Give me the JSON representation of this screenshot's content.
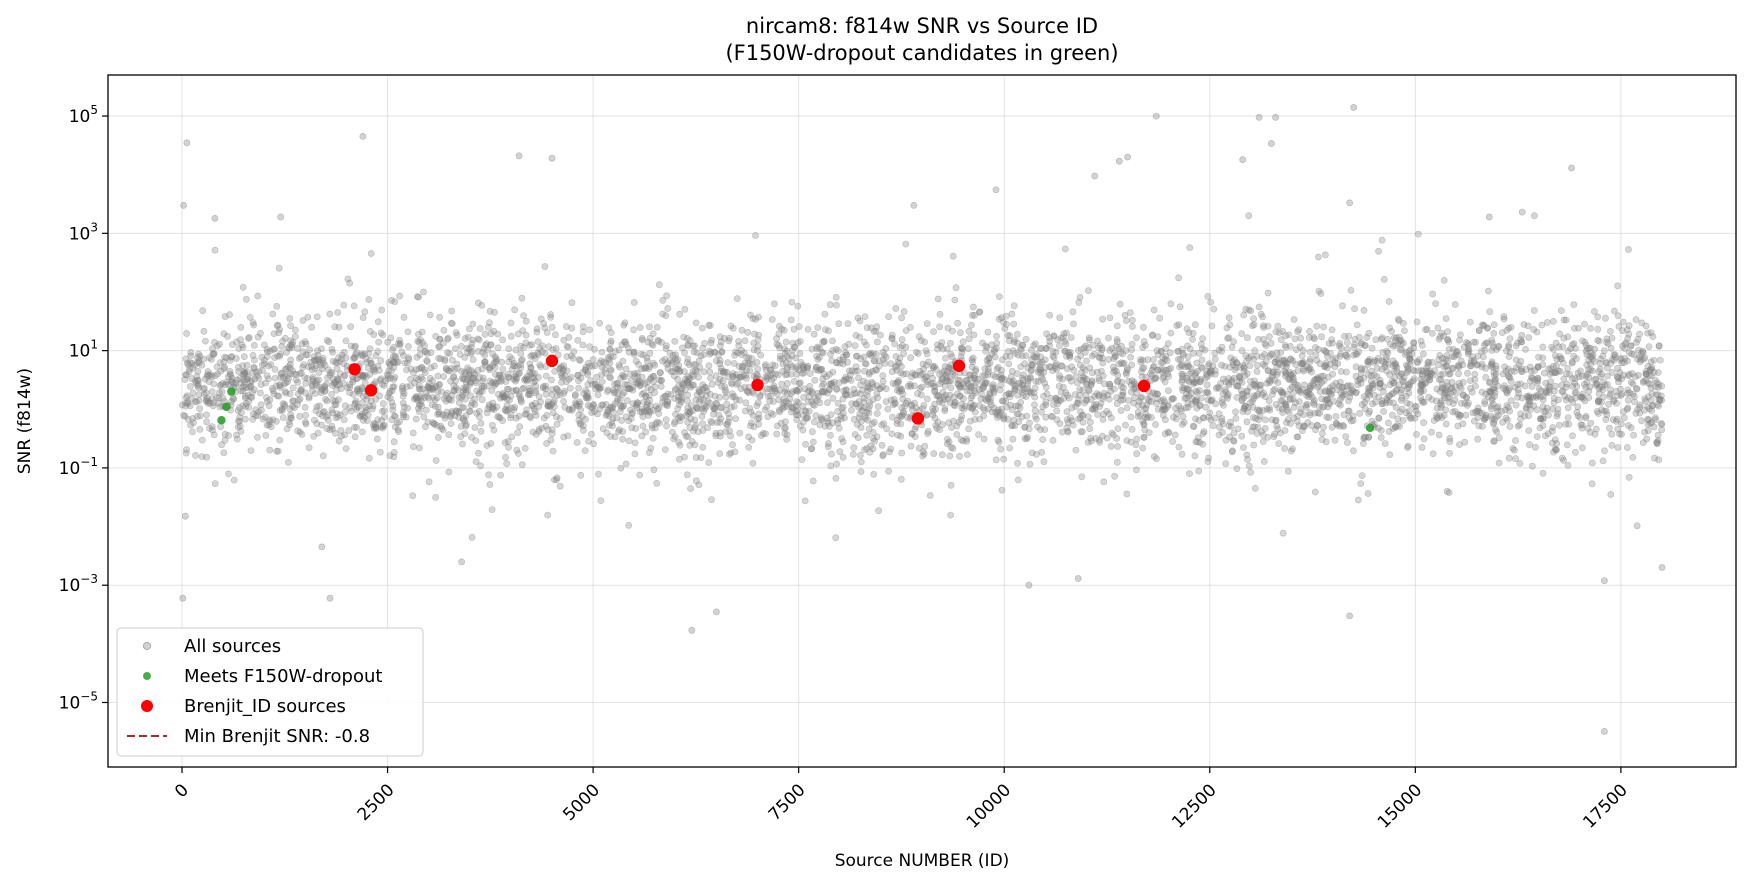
{
  "chart_data": {
    "type": "scatter",
    "title": "nircam8: f814w SNR vs Source ID",
    "subtitle": "(F150W-dropout candidates in green)",
    "xlabel": "Source NUMBER (ID)",
    "ylabel": "SNR (f814w)",
    "xlim": [
      -900,
      18900
    ],
    "ylim_log10": [
      -6.1,
      5.7
    ],
    "y_scale": "log",
    "grid": true,
    "legend_position": "lower-left",
    "x_ticks": [
      0,
      2500,
      5000,
      7500,
      10000,
      12500,
      15000,
      17500
    ],
    "x_tick_labels": [
      "0",
      "2500",
      "5000",
      "7500",
      "10000",
      "12500",
      "15000",
      "17500"
    ],
    "y_ticks_log10": [
      -5,
      -3,
      -1,
      1,
      3,
      5
    ],
    "y_tick_labels": [
      "10",
      "10",
      "10",
      "10",
      "10",
      "10"
    ],
    "y_tick_exponents": [
      "−5",
      "−3",
      "−1",
      "1",
      "3",
      "5"
    ],
    "series": [
      {
        "name": "All sources",
        "color": "#808080",
        "n_points": 18000,
        "x_range": [
          0,
          18000
        ],
        "note_points": "dense cloud; typical SNR ~0.3–40, with scattered outliers",
        "outliers": [
          {
            "x": 20,
            "y": 3000
          },
          {
            "x": 60,
            "y": 35000
          },
          {
            "x": 10,
            "y": 0.0006
          },
          {
            "x": 40,
            "y": 0.015
          },
          {
            "x": 400,
            "y": 1800
          },
          {
            "x": 1200,
            "y": 1900
          },
          {
            "x": 2200,
            "y": 45000
          },
          {
            "x": 1800,
            "y": 0.0006
          },
          {
            "x": 1700,
            "y": 0.0045
          },
          {
            "x": 3400,
            "y": 0.0025
          },
          {
            "x": 4100,
            "y": 21000
          },
          {
            "x": 4500,
            "y": 19000
          },
          {
            "x": 6200,
            "y": 0.00017
          },
          {
            "x": 6500,
            "y": 0.00035
          },
          {
            "x": 8900,
            "y": 3000
          },
          {
            "x": 9900,
            "y": 5500
          },
          {
            "x": 10300,
            "y": 0.001
          },
          {
            "x": 10900,
            "y": 0.0013
          },
          {
            "x": 11100,
            "y": 9500
          },
          {
            "x": 11400,
            "y": 17000
          },
          {
            "x": 11500,
            "y": 20000
          },
          {
            "x": 11850,
            "y": 100000
          },
          {
            "x": 13100,
            "y": 95000
          },
          {
            "x": 13300,
            "y": 95000
          },
          {
            "x": 13250,
            "y": 34000
          },
          {
            "x": 12900,
            "y": 18000
          },
          {
            "x": 14200,
            "y": 3300
          },
          {
            "x": 14250,
            "y": 140000
          },
          {
            "x": 14200,
            "y": 0.0003
          },
          {
            "x": 16900,
            "y": 13000
          },
          {
            "x": 17300,
            "y": 0.0012
          },
          {
            "x": 17300,
            "y": 3.2e-06
          },
          {
            "x": 18000,
            "y": 0.002
          },
          {
            "x": 15900,
            "y": 1900
          },
          {
            "x": 16300,
            "y": 2300
          }
        ]
      },
      {
        "name": "Meets F150W-dropout",
        "color": "#2ca02c",
        "points": [
          {
            "x": 480,
            "y": 0.65
          },
          {
            "x": 540,
            "y": 1.1
          },
          {
            "x": 600,
            "y": 2.0
          },
          {
            "x": 14450,
            "y": 0.48
          }
        ]
      },
      {
        "name": "Brenjit_ID sources",
        "color": "#ff0000",
        "points": [
          {
            "x": 2100,
            "y": 4.8
          },
          {
            "x": 2300,
            "y": 2.1
          },
          {
            "x": 4500,
            "y": 6.7
          },
          {
            "x": 7000,
            "y": 2.6
          },
          {
            "x": 8950,
            "y": 0.7
          },
          {
            "x": 9450,
            "y": 5.5
          },
          {
            "x": 11700,
            "y": 2.5
          }
        ]
      },
      {
        "name": "Min Brenjit SNR: -0.8",
        "color": "#a52a2a",
        "style": "dashed-line",
        "y": -0.8,
        "note": "negative value is not drawable on log axis; appears only in legend"
      }
    ]
  }
}
